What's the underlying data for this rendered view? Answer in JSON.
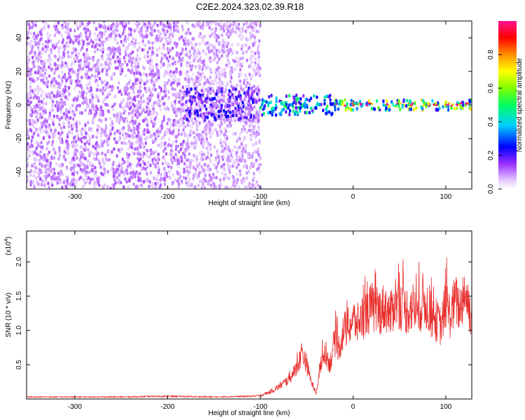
{
  "title": "C2E2.2024.323.02.39.R18",
  "colors": {
    "snr_line": "#e8302e",
    "axis": "#000000",
    "background": "#ffffff"
  },
  "chart_data": [
    {
      "type": "heatmap",
      "title": "C2E2.2024.323.02.39.R18",
      "xlabel": "Height of straight line (km)",
      "ylabel": "Frequency (Hz)",
      "xlim": [
        -352,
        128
      ],
      "ylim": [
        -50,
        50
      ],
      "x_ticks": [
        -300,
        -200,
        -100,
        0,
        100
      ],
      "x_tick_labels": [
        "-300",
        "-200",
        "-100",
        "0",
        "100"
      ],
      "y_ticks": [
        -40,
        -20,
        0,
        20,
        40
      ],
      "y_tick_labels": [
        "-40",
        "-20",
        "0",
        "20",
        "40"
      ],
      "colorbar": {
        "label": "Normalized spectral amplitude",
        "range": [
          0,
          1
        ],
        "ticks": [
          0,
          0.2,
          0.4,
          0.6,
          0.8
        ],
        "tick_labels": [
          "0.0",
          "0.2",
          "0.4",
          "0.6",
          "0.8"
        ],
        "colormap": "rainbow (white-violet-blue-cyan-green-yellow-red-magenta)"
      },
      "regions": [
        {
          "x_range": [
            -352,
            -180
          ],
          "freq_range": [
            -50,
            50
          ],
          "amplitude": 0.1,
          "character": "broadband noise"
        },
        {
          "x_range": [
            -180,
            -100
          ],
          "freq_range": [
            -50,
            50
          ],
          "amplitude": 0.08,
          "character": "broadband noise, fading"
        },
        {
          "x_range": [
            -180,
            -100
          ],
          "freq_range": [
            -10,
            10
          ],
          "amplitude": 0.2
        },
        {
          "x_range": [
            -100,
            -20
          ],
          "freq_range": [
            -6,
            6
          ],
          "amplitude": 0.4
        },
        {
          "x_range": [
            -20,
            128
          ],
          "freq_range": [
            -3,
            3
          ],
          "amplitude": 0.55
        },
        {
          "x_range": [
            -20,
            128
          ],
          "freq_range": [
            -0.8,
            0.8
          ],
          "amplitude": 0.95,
          "character": "narrow carrier line"
        }
      ]
    },
    {
      "type": "line",
      "xlabel": "Height of straight line (km)",
      "ylabel": "SNR (10 * v/v)",
      "y_multiplier_label": "(x10",
      "y_multiplier_exponent": "4",
      "xlim": [
        -352,
        128
      ],
      "ylim": [
        0,
        2.45
      ],
      "x_ticks": [
        -300,
        -200,
        -100,
        0,
        100
      ],
      "x_tick_labels": [
        "-300",
        "-200",
        "-100",
        "0",
        "100"
      ],
      "y_ticks": [
        0.5,
        1.0,
        1.5,
        2.0
      ],
      "y_tick_labels": [
        "0.5",
        "1.0",
        "1.5",
        "2.0"
      ],
      "series": [
        {
          "color": "#e8302e",
          "x": [
            -352,
            -300,
            -250,
            -200,
            -150,
            -110,
            -100,
            -90,
            -80,
            -70,
            -60,
            -55,
            -50,
            -45,
            -40,
            -35,
            -30,
            -25,
            -20,
            -15,
            -10,
            -5,
            0,
            5,
            10,
            15,
            20,
            25,
            30,
            35,
            40,
            45,
            50,
            55,
            60,
            65,
            70,
            75,
            80,
            85,
            90,
            95,
            100,
            105,
            110,
            115,
            120,
            125,
            128
          ],
          "y": [
            0.03,
            0.03,
            0.03,
            0.04,
            0.03,
            0.04,
            0.05,
            0.1,
            0.18,
            0.28,
            0.45,
            0.7,
            0.5,
            0.25,
            0.08,
            0.5,
            0.7,
            0.5,
            0.85,
            0.75,
            1.0,
            1.05,
            1.15,
            1.1,
            1.2,
            1.25,
            1.35,
            1.25,
            1.3,
            1.35,
            1.2,
            1.45,
            1.4,
            1.3,
            1.3,
            1.35,
            1.2,
            1.45,
            1.35,
            1.2,
            1.15,
            1.05,
            1.4,
            1.2,
            1.45,
            1.3,
            1.6,
            1.35,
            1.2
          ],
          "noise_amplitude_fraction": 0.28
        }
      ]
    }
  ]
}
